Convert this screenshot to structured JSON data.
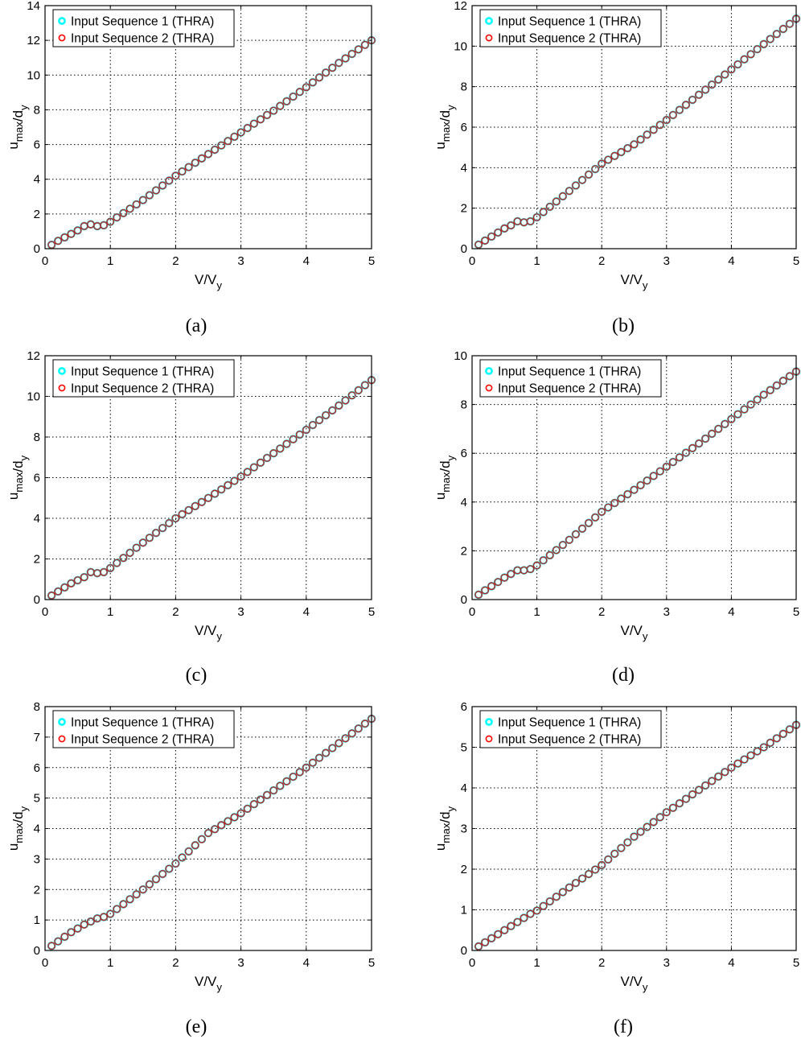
{
  "figure": {
    "panels": [
      "(a)",
      "(b)",
      "(c)",
      "(d)",
      "(e)",
      "(f)"
    ]
  },
  "series_colors": {
    "seq1": "#00ffff",
    "seq2": "#ff0000",
    "grid": "#000000"
  },
  "chart_data": [
    {
      "type": "scatter",
      "caption": "(a)",
      "xlabel": "V/V_y",
      "ylabel": "u_max/d_y",
      "xlim": [
        0,
        5
      ],
      "ylim": [
        0,
        14
      ],
      "xticks": [
        0,
        1,
        2,
        3,
        4,
        5
      ],
      "yticks": [
        0,
        2,
        4,
        6,
        8,
        10,
        12,
        14
      ],
      "grid": true,
      "legend_position": "top-left",
      "series": [
        {
          "name": "Input Sequence 1 (THRA)",
          "color": "#00ffff",
          "points": [
            [
              0.1,
              0.22
            ],
            [
              0.2,
              0.45
            ],
            [
              0.3,
              0.65
            ],
            [
              0.4,
              0.85
            ],
            [
              0.5,
              1.05
            ],
            [
              0.6,
              1.3
            ],
            [
              0.7,
              1.4
            ],
            [
              0.8,
              1.3
            ],
            [
              0.9,
              1.35
            ],
            [
              1.0,
              1.55
            ],
            [
              1.5,
              2.8
            ],
            [
              2.0,
              4.2
            ],
            [
              2.5,
              5.45
            ],
            [
              3.0,
              6.7
            ],
            [
              3.5,
              7.95
            ],
            [
              4.0,
              9.3
            ],
            [
              4.5,
              10.7
            ],
            [
              5.0,
              12.0
            ]
          ]
        },
        {
          "name": "Input Sequence 2 (THRA)",
          "color": "#ff0000",
          "points": [
            [
              0.1,
              0.22
            ],
            [
              0.2,
              0.45
            ],
            [
              0.3,
              0.65
            ],
            [
              0.4,
              0.85
            ],
            [
              0.5,
              1.05
            ],
            [
              0.6,
              1.3
            ],
            [
              0.7,
              1.4
            ],
            [
              0.8,
              1.3
            ],
            [
              0.9,
              1.35
            ],
            [
              1.0,
              1.55
            ],
            [
              1.5,
              2.8
            ],
            [
              2.0,
              4.2
            ],
            [
              2.5,
              5.45
            ],
            [
              3.0,
              6.7
            ],
            [
              3.5,
              7.95
            ],
            [
              4.0,
              9.3
            ],
            [
              4.5,
              10.7
            ],
            [
              5.0,
              12.0
            ]
          ]
        }
      ]
    },
    {
      "type": "scatter",
      "caption": "(b)",
      "xlabel": "V/V_y",
      "ylabel": "u_max/d_y",
      "xlim": [
        0,
        5
      ],
      "ylim": [
        0,
        12
      ],
      "xticks": [
        0,
        1,
        2,
        3,
        4,
        5
      ],
      "yticks": [
        0,
        2,
        4,
        6,
        8,
        10,
        12
      ],
      "grid": true,
      "legend_position": "top-left",
      "series": [
        {
          "name": "Input Sequence 1 (THRA)",
          "color": "#00ffff",
          "points": [
            [
              0.1,
              0.2
            ],
            [
              0.2,
              0.4
            ],
            [
              0.3,
              0.6
            ],
            [
              0.4,
              0.8
            ],
            [
              0.5,
              1.0
            ],
            [
              0.6,
              1.15
            ],
            [
              0.7,
              1.35
            ],
            [
              0.8,
              1.3
            ],
            [
              0.9,
              1.35
            ],
            [
              1.0,
              1.55
            ],
            [
              1.5,
              2.85
            ],
            [
              2.0,
              4.2
            ],
            [
              2.5,
              5.15
            ],
            [
              3.0,
              6.35
            ],
            [
              3.5,
              7.6
            ],
            [
              4.0,
              8.85
            ],
            [
              4.5,
              10.1
            ],
            [
              5.0,
              11.35
            ]
          ]
        },
        {
          "name": "Input Sequence 2 (THRA)",
          "color": "#ff0000",
          "points": [
            [
              0.1,
              0.2
            ],
            [
              0.2,
              0.4
            ],
            [
              0.3,
              0.6
            ],
            [
              0.4,
              0.8
            ],
            [
              0.5,
              1.0
            ],
            [
              0.6,
              1.15
            ],
            [
              0.7,
              1.35
            ],
            [
              0.8,
              1.3
            ],
            [
              0.9,
              1.35
            ],
            [
              1.0,
              1.55
            ],
            [
              1.5,
              2.85
            ],
            [
              2.0,
              4.2
            ],
            [
              2.5,
              5.15
            ],
            [
              3.0,
              6.35
            ],
            [
              3.5,
              7.6
            ],
            [
              4.0,
              8.85
            ],
            [
              4.5,
              10.1
            ],
            [
              5.0,
              11.35
            ]
          ]
        }
      ]
    },
    {
      "type": "scatter",
      "caption": "(c)",
      "xlabel": "V/V_y",
      "ylabel": "u_max/d_y",
      "xlim": [
        0,
        5
      ],
      "ylim": [
        0,
        12
      ],
      "xticks": [
        0,
        1,
        2,
        3,
        4,
        5
      ],
      "yticks": [
        0,
        2,
        4,
        6,
        8,
        10,
        12
      ],
      "grid": true,
      "legend_position": "top-left",
      "series": [
        {
          "name": "Input Sequence 1 (THRA)",
          "color": "#00ffff",
          "points": [
            [
              0.1,
              0.2
            ],
            [
              0.2,
              0.4
            ],
            [
              0.3,
              0.6
            ],
            [
              0.4,
              0.8
            ],
            [
              0.5,
              0.95
            ],
            [
              0.6,
              1.1
            ],
            [
              0.7,
              1.35
            ],
            [
              0.8,
              1.3
            ],
            [
              0.9,
              1.35
            ],
            [
              1.0,
              1.55
            ],
            [
              1.5,
              2.8
            ],
            [
              2.0,
              4.0
            ],
            [
              2.5,
              5.0
            ],
            [
              3.0,
              6.05
            ],
            [
              3.5,
              7.2
            ],
            [
              4.0,
              8.35
            ],
            [
              4.5,
              9.55
            ],
            [
              5.0,
              10.8
            ]
          ]
        },
        {
          "name": "Input Sequence 2 (THRA)",
          "color": "#ff0000",
          "points": [
            [
              0.1,
              0.2
            ],
            [
              0.2,
              0.4
            ],
            [
              0.3,
              0.6
            ],
            [
              0.4,
              0.8
            ],
            [
              0.5,
              0.95
            ],
            [
              0.6,
              1.1
            ],
            [
              0.7,
              1.35
            ],
            [
              0.8,
              1.3
            ],
            [
              0.9,
              1.35
            ],
            [
              1.0,
              1.55
            ],
            [
              1.5,
              2.8
            ],
            [
              2.0,
              4.0
            ],
            [
              2.5,
              5.0
            ],
            [
              3.0,
              6.05
            ],
            [
              3.5,
              7.2
            ],
            [
              4.0,
              8.35
            ],
            [
              4.5,
              9.55
            ],
            [
              5.0,
              10.8
            ]
          ]
        }
      ]
    },
    {
      "type": "scatter",
      "caption": "(d)",
      "xlabel": "V/V_y",
      "ylabel": "u_max/d_y",
      "xlim": [
        0,
        5
      ],
      "ylim": [
        0,
        10
      ],
      "xticks": [
        0,
        1,
        2,
        3,
        4,
        5
      ],
      "yticks": [
        0,
        2,
        4,
        6,
        8,
        10
      ],
      "grid": true,
      "legend_position": "top-left",
      "series": [
        {
          "name": "Input Sequence 1 (THRA)",
          "color": "#00ffff",
          "points": [
            [
              0.1,
              0.2
            ],
            [
              0.2,
              0.38
            ],
            [
              0.3,
              0.55
            ],
            [
              0.4,
              0.72
            ],
            [
              0.5,
              0.9
            ],
            [
              0.6,
              1.05
            ],
            [
              0.7,
              1.2
            ],
            [
              0.8,
              1.2
            ],
            [
              0.9,
              1.25
            ],
            [
              1.0,
              1.4
            ],
            [
              1.5,
              2.45
            ],
            [
              2.0,
              3.6
            ],
            [
              2.5,
              4.5
            ],
            [
              3.0,
              5.45
            ],
            [
              3.5,
              6.4
            ],
            [
              4.0,
              7.4
            ],
            [
              4.5,
              8.4
            ],
            [
              5.0,
              9.35
            ]
          ]
        },
        {
          "name": "Input Sequence 2 (THRA)",
          "color": "#ff0000",
          "points": [
            [
              0.1,
              0.2
            ],
            [
              0.2,
              0.38
            ],
            [
              0.3,
              0.55
            ],
            [
              0.4,
              0.72
            ],
            [
              0.5,
              0.9
            ],
            [
              0.6,
              1.05
            ],
            [
              0.7,
              1.2
            ],
            [
              0.8,
              1.2
            ],
            [
              0.9,
              1.25
            ],
            [
              1.0,
              1.4
            ],
            [
              1.5,
              2.45
            ],
            [
              2.0,
              3.6
            ],
            [
              2.5,
              4.5
            ],
            [
              3.0,
              5.45
            ],
            [
              3.5,
              6.4
            ],
            [
              4.0,
              7.4
            ],
            [
              4.5,
              8.4
            ],
            [
              5.0,
              9.35
            ]
          ]
        }
      ]
    },
    {
      "type": "scatter",
      "caption": "(e)",
      "xlabel": "V/V_y",
      "ylabel": "u_max/d_y",
      "xlim": [
        0,
        5
      ],
      "ylim": [
        0,
        8
      ],
      "xticks": [
        0,
        1,
        2,
        3,
        4,
        5
      ],
      "yticks": [
        0,
        1,
        2,
        3,
        4,
        5,
        6,
        7,
        8
      ],
      "grid": true,
      "legend_position": "top-left",
      "series": [
        {
          "name": "Input Sequence 1 (THRA)",
          "color": "#00ffff",
          "points": [
            [
              0.1,
              0.15
            ],
            [
              0.2,
              0.3
            ],
            [
              0.3,
              0.45
            ],
            [
              0.4,
              0.6
            ],
            [
              0.5,
              0.72
            ],
            [
              0.6,
              0.85
            ],
            [
              0.7,
              0.95
            ],
            [
              0.8,
              1.05
            ],
            [
              0.9,
              1.1
            ],
            [
              1.0,
              1.2
            ],
            [
              1.5,
              2.0
            ],
            [
              2.0,
              2.85
            ],
            [
              2.5,
              3.85
            ],
            [
              3.0,
              4.5
            ],
            [
              3.5,
              5.25
            ],
            [
              4.0,
              6.0
            ],
            [
              4.5,
              6.8
            ],
            [
              5.0,
              7.6
            ]
          ]
        },
        {
          "name": "Input Sequence 2 (THRA)",
          "color": "#ff0000",
          "points": [
            [
              0.1,
              0.15
            ],
            [
              0.2,
              0.3
            ],
            [
              0.3,
              0.45
            ],
            [
              0.4,
              0.6
            ],
            [
              0.5,
              0.72
            ],
            [
              0.6,
              0.85
            ],
            [
              0.7,
              0.95
            ],
            [
              0.8,
              1.05
            ],
            [
              0.9,
              1.1
            ],
            [
              1.0,
              1.2
            ],
            [
              1.5,
              2.0
            ],
            [
              2.0,
              2.85
            ],
            [
              2.5,
              3.85
            ],
            [
              3.0,
              4.5
            ],
            [
              3.5,
              5.25
            ],
            [
              4.0,
              6.0
            ],
            [
              4.5,
              6.8
            ],
            [
              5.0,
              7.6
            ]
          ]
        }
      ]
    },
    {
      "type": "scatter",
      "caption": "(f)",
      "xlabel": "V/V_y",
      "ylabel": "u_max/d_y",
      "xlim": [
        0,
        5
      ],
      "ylim": [
        0,
        6
      ],
      "xticks": [
        0,
        1,
        2,
        3,
        4,
        5
      ],
      "yticks": [
        0,
        1,
        2,
        3,
        4,
        5,
        6
      ],
      "grid": true,
      "legend_position": "top-left",
      "series": [
        {
          "name": "Input Sequence 1 (THRA)",
          "color": "#00ffff",
          "points": [
            [
              0.1,
              0.1
            ],
            [
              0.2,
              0.2
            ],
            [
              0.3,
              0.3
            ],
            [
              0.4,
              0.4
            ],
            [
              0.5,
              0.5
            ],
            [
              0.6,
              0.6
            ],
            [
              0.7,
              0.7
            ],
            [
              0.8,
              0.8
            ],
            [
              0.9,
              0.9
            ],
            [
              1.0,
              0.98
            ],
            [
              1.5,
              1.55
            ],
            [
              2.0,
              2.1
            ],
            [
              2.5,
              2.8
            ],
            [
              3.0,
              3.4
            ],
            [
              3.5,
              3.95
            ],
            [
              4.0,
              4.5
            ],
            [
              4.5,
              5.0
            ],
            [
              5.0,
              5.55
            ]
          ]
        },
        {
          "name": "Input Sequence 2 (THRA)",
          "color": "#ff0000",
          "points": [
            [
              0.1,
              0.1
            ],
            [
              0.2,
              0.2
            ],
            [
              0.3,
              0.3
            ],
            [
              0.4,
              0.4
            ],
            [
              0.5,
              0.5
            ],
            [
              0.6,
              0.6
            ],
            [
              0.7,
              0.7
            ],
            [
              0.8,
              0.8
            ],
            [
              0.9,
              0.9
            ],
            [
              1.0,
              0.98
            ],
            [
              1.5,
              1.55
            ],
            [
              2.0,
              2.1
            ],
            [
              2.5,
              2.8
            ],
            [
              3.0,
              3.4
            ],
            [
              3.5,
              3.95
            ],
            [
              4.0,
              4.5
            ],
            [
              4.5,
              5.0
            ],
            [
              5.0,
              5.55
            ]
          ]
        }
      ]
    }
  ]
}
